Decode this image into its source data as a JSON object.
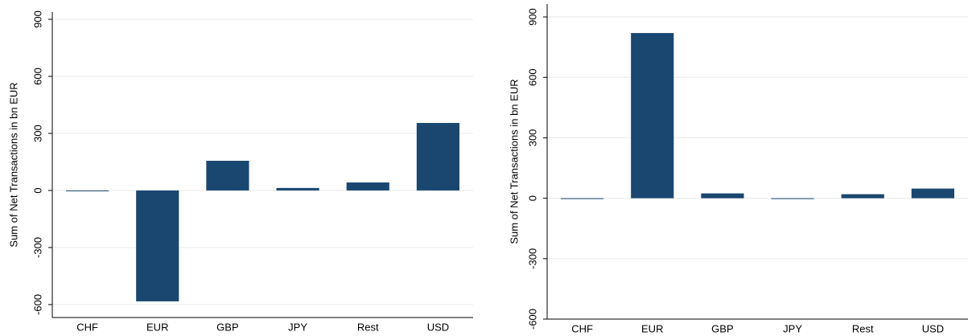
{
  "chart_data": [
    {
      "type": "bar",
      "ylabel": "Sum of Net Transactions in bn EUR",
      "categories": [
        "CHF",
        "EUR",
        "GBP",
        "JPY",
        "Rest",
        "USD"
      ],
      "values": [
        -3,
        -583,
        156,
        13,
        42,
        355
      ],
      "color": "#1a476f",
      "ylim": [
        -668,
        938
      ],
      "yticks": [
        -600,
        -300,
        0,
        300,
        600,
        900
      ],
      "grid": true
    },
    {
      "type": "bar",
      "ylabel": "Sum of Net Transactions in bn EUR",
      "categories": [
        "CHF",
        "EUR",
        "GBP",
        "JPY",
        "Rest",
        "USD"
      ],
      "values": [
        -2,
        820,
        24,
        -3,
        20,
        48
      ],
      "color": "#1a476f",
      "ylim": [
        -600,
        964
      ],
      "yticks": [
        -600,
        -300,
        0,
        300,
        600,
        900
      ],
      "grid": true
    }
  ]
}
